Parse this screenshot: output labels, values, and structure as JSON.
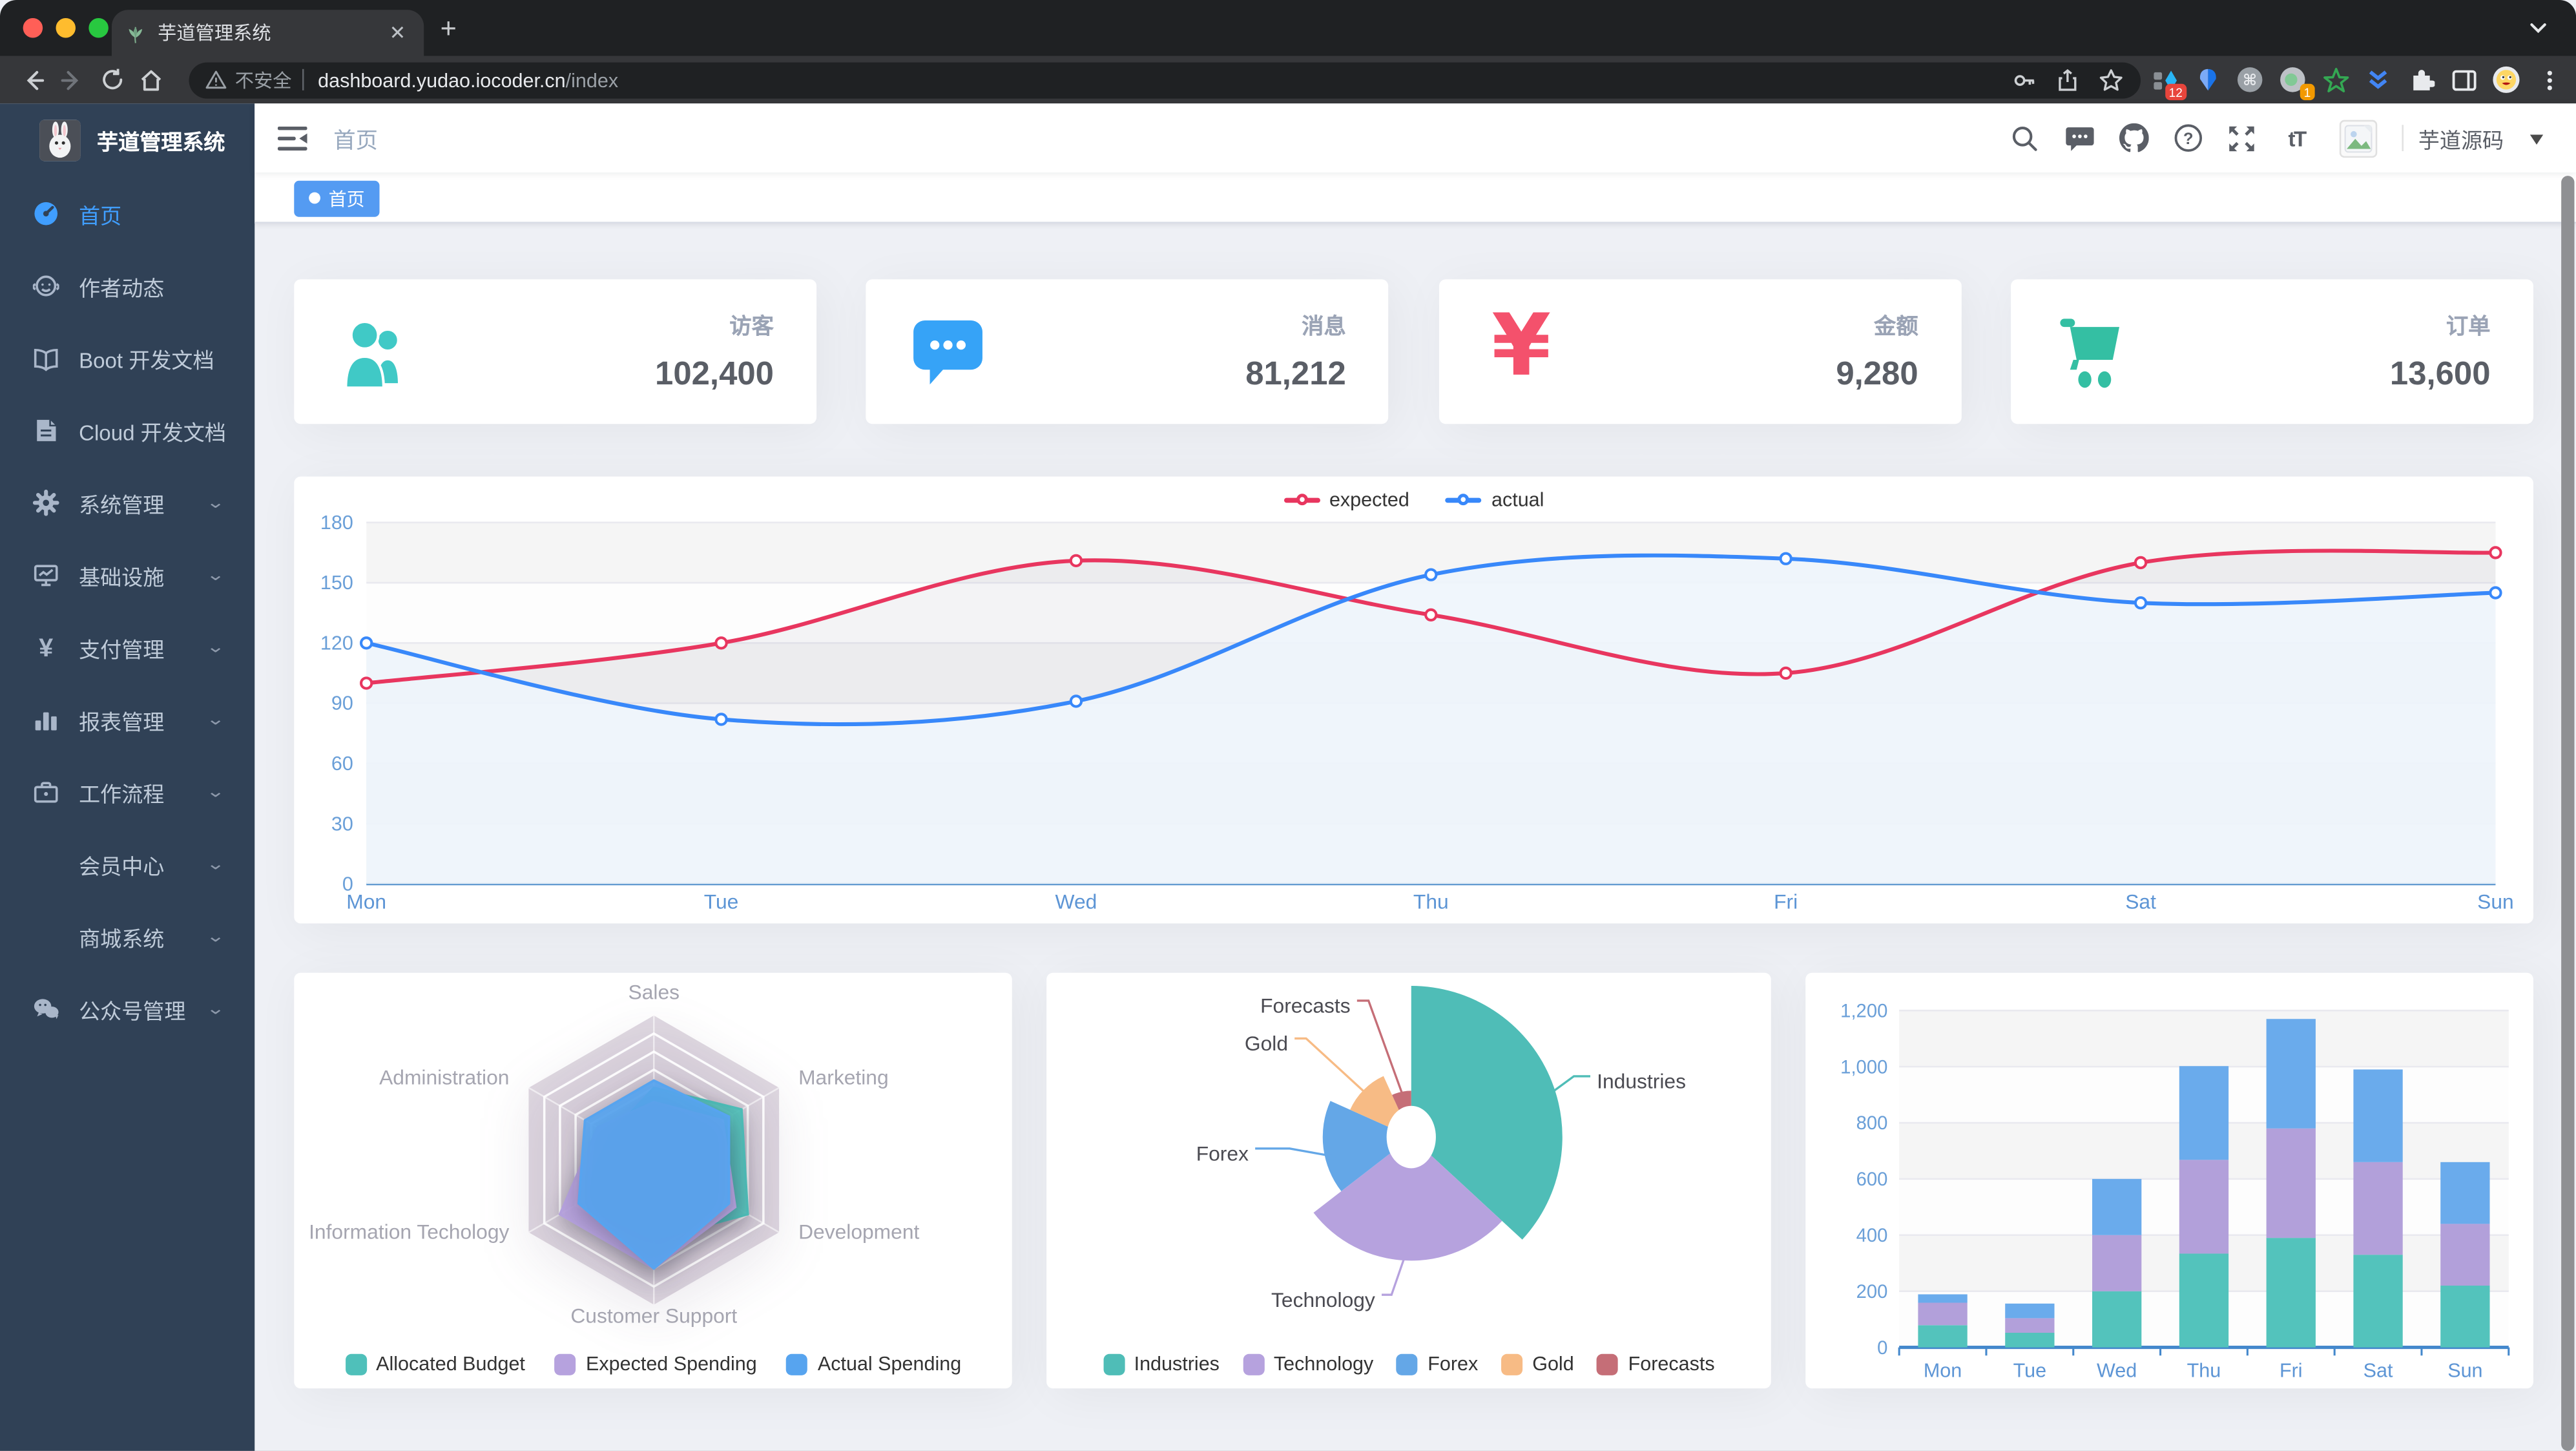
{
  "browser": {
    "tab_title": "芋道管理系统",
    "new_tab": "+",
    "close_tab": "✕",
    "security_label": "不安全",
    "url_host": "dashboard.yudao.iocoder.cn",
    "url_path": "/index",
    "ext_badge_1": "12",
    "ext_badge_2": "1"
  },
  "sidebar": {
    "logo_title": "芋道管理系统",
    "items": [
      {
        "label": "首页",
        "icon": "dashboard-icon",
        "active": true,
        "chevron": false
      },
      {
        "label": "作者动态",
        "icon": "author-icon",
        "active": false,
        "chevron": false
      },
      {
        "label": "Boot 开发文档",
        "icon": "book-icon",
        "active": false,
        "chevron": false
      },
      {
        "label": "Cloud 开发文档",
        "icon": "document-icon",
        "active": false,
        "chevron": false
      },
      {
        "label": "系统管理",
        "icon": "gear-icon",
        "active": false,
        "chevron": true
      },
      {
        "label": "基础设施",
        "icon": "infrastructure-icon",
        "active": false,
        "chevron": true
      },
      {
        "label": "支付管理",
        "icon": "yen-icon",
        "active": false,
        "chevron": true
      },
      {
        "label": "报表管理",
        "icon": "report-icon",
        "active": false,
        "chevron": true
      },
      {
        "label": "工作流程",
        "icon": "workflow-icon",
        "active": false,
        "chevron": true
      },
      {
        "label": "会员中心",
        "icon": "",
        "active": false,
        "chevron": true
      },
      {
        "label": "商城系统",
        "icon": "",
        "active": false,
        "chevron": true
      },
      {
        "label": "公众号管理",
        "icon": "wechat-icon",
        "active": false,
        "chevron": true
      }
    ]
  },
  "navbar": {
    "breadcrumb": "首页",
    "username": "芋道源码"
  },
  "tags_view": {
    "tags": [
      {
        "label": "首页",
        "active": true
      }
    ]
  },
  "stats": [
    {
      "label": "访客",
      "value": "102,400",
      "icon": "people-icon",
      "color": "#40c9c6"
    },
    {
      "label": "消息",
      "value": "81,212",
      "icon": "message-icon",
      "color": "#36a3f7"
    },
    {
      "label": "金额",
      "value": "9,280",
      "icon": "yen-icon",
      "color": "#f4516c"
    },
    {
      "label": "订单",
      "value": "13,600",
      "icon": "cart-icon",
      "color": "#34bfa3"
    }
  ],
  "chart_data": [
    {
      "type": "line",
      "title": "",
      "categories": [
        "Mon",
        "Tue",
        "Wed",
        "Thu",
        "Fri",
        "Sat",
        "Sun"
      ],
      "series": [
        {
          "name": "expected",
          "color": "#e8365f",
          "values": [
            100,
            120,
            161,
            134,
            105,
            160,
            165
          ]
        },
        {
          "name": "actual",
          "color": "#3888fa",
          "values": [
            120,
            82,
            91,
            154,
            162,
            140,
            145
          ]
        }
      ],
      "xlabel": "",
      "ylabel": "",
      "ylim": [
        0,
        180
      ],
      "yticks": [
        0,
        30,
        60,
        90,
        120,
        150,
        180
      ],
      "legend_position": "top",
      "grid": true
    },
    {
      "type": "radar",
      "indicators": [
        {
          "name": "Sales",
          "max": 10000
        },
        {
          "name": "Marketing",
          "max": 20000
        },
        {
          "name": "Development",
          "max": 20000
        },
        {
          "name": "Customer Support",
          "max": 20000
        },
        {
          "name": "Information Techology",
          "max": 20000
        },
        {
          "name": "Administration",
          "max": 20000
        }
      ],
      "series": [
        {
          "name": "Allocated Budget",
          "color": "#4fc0ba",
          "values": [
            5000,
            14000,
            15000,
            11000,
            12000,
            7000
          ]
        },
        {
          "name": "Expected Spending",
          "color": "#b6a2de",
          "values": [
            4000,
            11000,
            13000,
            15000,
            15000,
            9000
          ]
        },
        {
          "name": "Actual Spending",
          "color": "#57a4ef",
          "values": [
            5500,
            12000,
            12000,
            15000,
            12000,
            11000
          ]
        }
      ],
      "legend_position": "bottom"
    },
    {
      "type": "pie",
      "rose": true,
      "items": [
        {
          "name": "Industries",
          "value": 320,
          "color": "#4fbdb7"
        },
        {
          "name": "Technology",
          "value": 240,
          "color": "#b6a2de"
        },
        {
          "name": "Forex",
          "value": 149,
          "color": "#64a7e7"
        },
        {
          "name": "Gold",
          "value": 100,
          "color": "#f7bb85"
        },
        {
          "name": "Forecasts",
          "value": 59,
          "color": "#c56e77"
        }
      ],
      "legend_position": "bottom"
    },
    {
      "type": "bar",
      "stacked": true,
      "categories": [
        "Mon",
        "Tue",
        "Wed",
        "Thu",
        "Fri",
        "Sat",
        "Sun"
      ],
      "series": [
        {
          "color": "#53c3bc",
          "values": [
            79,
            52,
            200,
            334,
            390,
            330,
            220
          ]
        },
        {
          "color": "#b2a0da",
          "values": [
            80,
            52,
            200,
            334,
            390,
            330,
            220
          ]
        },
        {
          "color": "#6aabec",
          "values": [
            30,
            52,
            200,
            334,
            390,
            330,
            220
          ]
        }
      ],
      "ylim": [
        0,
        1200
      ],
      "yticks": [
        "0",
        "200",
        "400",
        "600",
        "800",
        "1,000",
        "1,200"
      ],
      "grid": true
    }
  ]
}
